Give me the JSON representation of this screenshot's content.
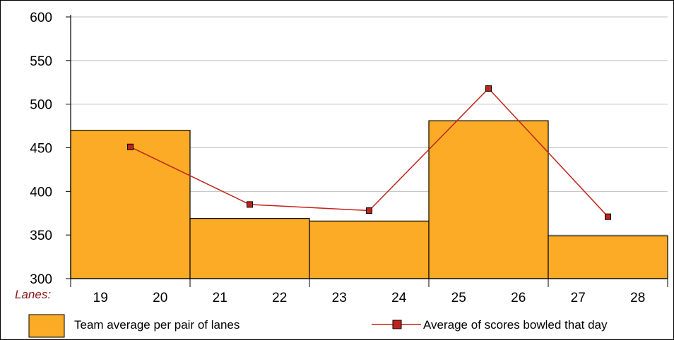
{
  "chart_data": {
    "type": "bar",
    "axis_prefix_label": "Lanes:",
    "x_tick_labels": [
      "19",
      "20",
      "21",
      "22",
      "23",
      "24",
      "25",
      "26",
      "27",
      "28"
    ],
    "categories": [
      "19-20",
      "21-22",
      "23-24",
      "25-26",
      "27-28"
    ],
    "ylim": [
      300,
      600
    ],
    "y_ticks": [
      300,
      350,
      400,
      450,
      500,
      550,
      600
    ],
    "grid": true,
    "legend_position": "bottom",
    "series": [
      {
        "name": "Team average per pair of lanes",
        "type": "bar",
        "values": [
          470,
          369,
          366,
          481,
          349
        ],
        "color": "#fbab25"
      },
      {
        "name": "Average of scores bowled that day",
        "type": "line",
        "values": [
          451,
          385,
          378,
          518,
          371
        ],
        "color": "#c0231a"
      }
    ]
  }
}
